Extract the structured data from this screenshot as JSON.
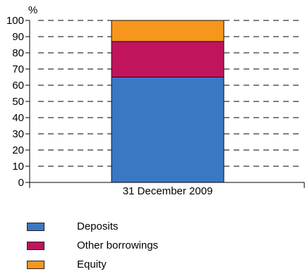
{
  "chart_data": {
    "type": "bar",
    "stacked": true,
    "ylabel": "%",
    "ylim": [
      0,
      100
    ],
    "yticks": [
      0,
      10,
      20,
      30,
      40,
      50,
      60,
      70,
      80,
      90,
      100
    ],
    "grid": true,
    "legend_position": "bottom-left",
    "categories": [
      "31 December 2009"
    ],
    "series": [
      {
        "name": "Deposits",
        "values": [
          65
        ],
        "color": "#3a78c3"
      },
      {
        "name": "Other borrowings",
        "values": [
          22
        ],
        "color": "#c0145c"
      },
      {
        "name": "Equity",
        "values": [
          13
        ],
        "color": "#f7961d"
      }
    ]
  }
}
